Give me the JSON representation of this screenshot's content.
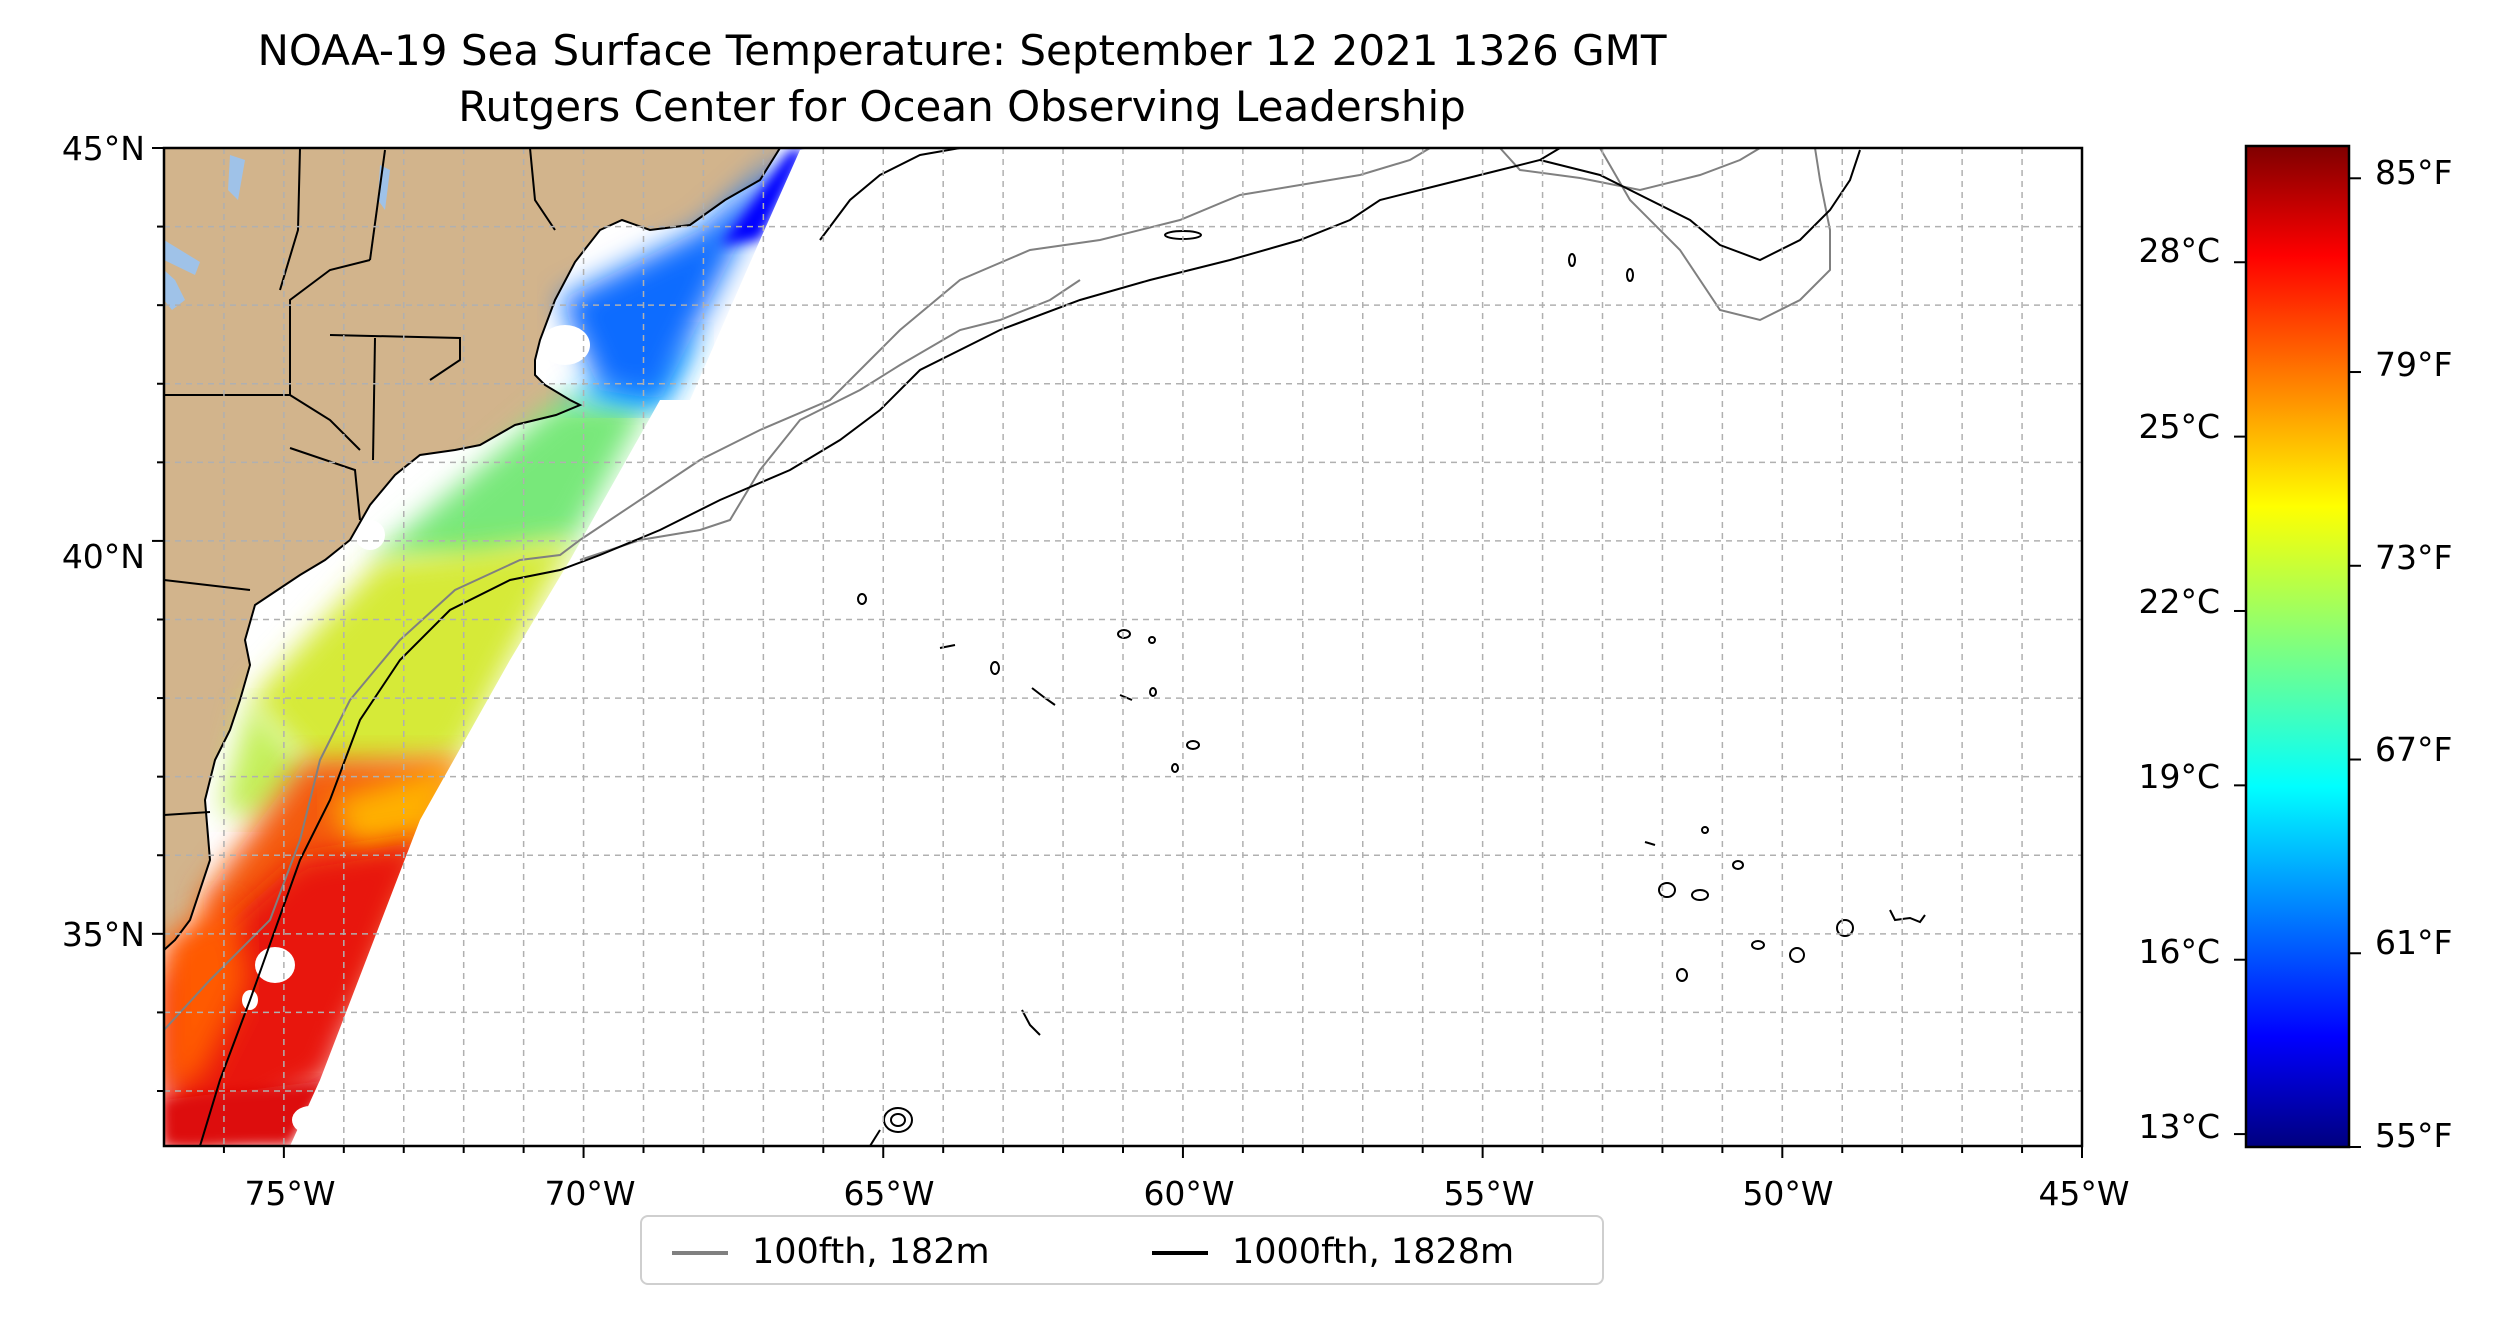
{
  "title": {
    "line1": "NOAA-19 Sea Surface Temperature: September 12 2021 1326 GMT",
    "line2": "Rutgers Center for Ocean Observing Leadership"
  },
  "map": {
    "lon_range": [
      -77,
      -45
    ],
    "lat_range": [
      32.3,
      45
    ],
    "x_ticks": [
      {
        "value": -75,
        "label": "75°W"
      },
      {
        "value": -70,
        "label": "70°W"
      },
      {
        "value": -65,
        "label": "65°W"
      },
      {
        "value": -60,
        "label": "60°W"
      },
      {
        "value": -55,
        "label": "55°W"
      },
      {
        "value": -50,
        "label": "50°W"
      },
      {
        "value": -45,
        "label": "45°W"
      }
    ],
    "y_ticks": [
      {
        "value": 45,
        "label": "45°N"
      },
      {
        "value": 40,
        "label": "40°N"
      },
      {
        "value": 35,
        "label": "35°N"
      }
    ],
    "gridlines": "dashed, every 1° lat and 1° lon",
    "colors": {
      "land": "#d2b48c",
      "lakes": "#9fc2e8",
      "isobath_100fth": "#808080",
      "isobath_1000fth": "#000000",
      "grid": "#b0b0b0",
      "no_data": "#ffffff"
    },
    "sst_swath_temps_F": {
      "gulf_of_maine": "57-67",
      "nj_ny_shelf": "67-72",
      "mid_atlantic_shelf": "70-77",
      "gulf_stream": "81-84"
    }
  },
  "legend": {
    "items": [
      {
        "label": "100fth, 182m",
        "color": "#808080"
      },
      {
        "label": "1000fth, 1828m",
        "color": "#000000"
      }
    ],
    "placement": "bottom-center"
  },
  "colorbar": {
    "range_F": [
      55,
      86
    ],
    "colormap": "jet",
    "celsius_ticks": [
      {
        "value": 28,
        "label": "28°C"
      },
      {
        "value": 25,
        "label": "25°C"
      },
      {
        "value": 22,
        "label": "22°C"
      },
      {
        "value": 19,
        "label": "19°C"
      },
      {
        "value": 16,
        "label": "16°C"
      },
      {
        "value": 13,
        "label": "13°C"
      }
    ],
    "fahrenheit_ticks": [
      {
        "value": 85,
        "label": "85°F"
      },
      {
        "value": 79,
        "label": "79°F"
      },
      {
        "value": 73,
        "label": "73°F"
      },
      {
        "value": 67,
        "label": "67°F"
      },
      {
        "value": 61,
        "label": "61°F"
      },
      {
        "value": 55,
        "label": "55°F"
      }
    ]
  }
}
